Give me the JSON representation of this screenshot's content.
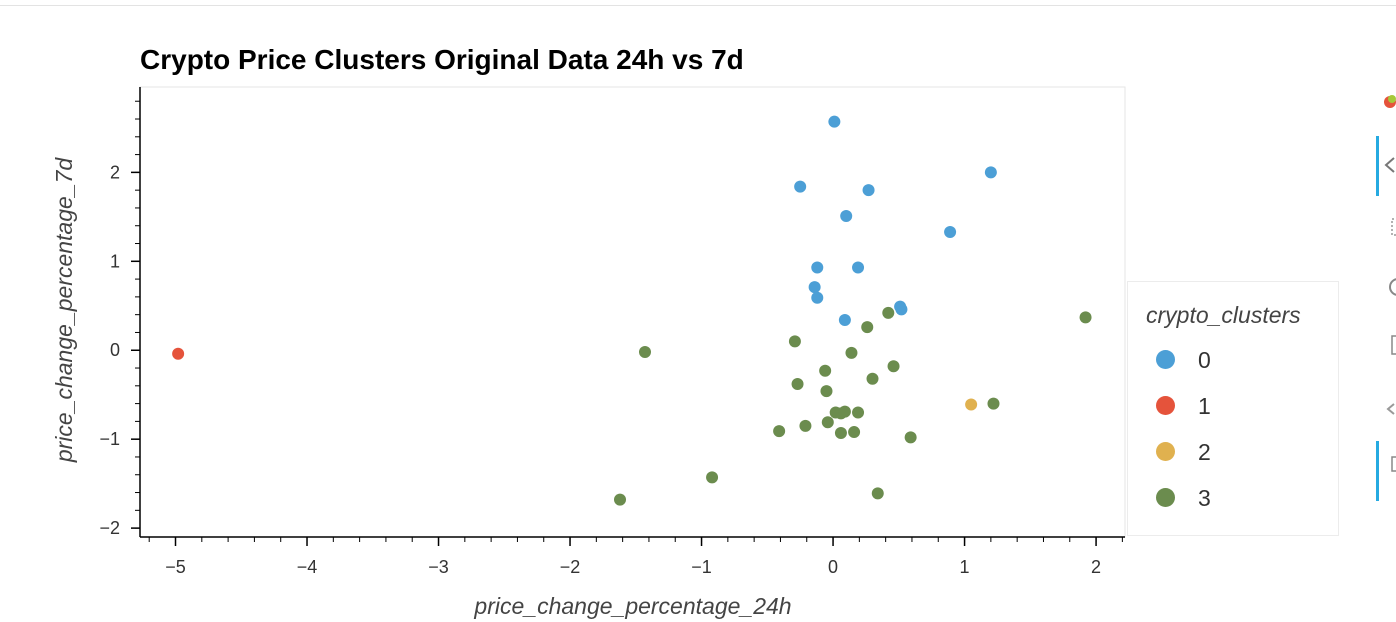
{
  "chart_data": {
    "type": "scatter",
    "title": "Crypto Price Clusters Original Data 24h vs 7d",
    "xlabel": "price_change_percentage_24h",
    "ylabel": "price_change_percentage_7d",
    "xlim": [
      -5.27,
      2.22
    ],
    "ylim": [
      -2.1,
      2.96
    ],
    "xticks": [
      -5,
      -4,
      -3,
      -2,
      -1,
      0,
      1,
      2
    ],
    "yticks": [
      -2,
      -1,
      0,
      1,
      2
    ],
    "xtick_labels": [
      "−5",
      "−4",
      "−3",
      "−2",
      "−1",
      "0",
      "1",
      "2"
    ],
    "ytick_labels": [
      "−2",
      "−1",
      "0",
      "1",
      "2"
    ],
    "legend_title": "crypto_clusters",
    "legend_position": "right",
    "grid": false,
    "series": [
      {
        "name": "0",
        "color": "#4c9fd6",
        "points": [
          [
            0.01,
            2.57
          ],
          [
            1.2,
            2.0
          ],
          [
            -0.25,
            1.84
          ],
          [
            0.27,
            1.8
          ],
          [
            0.1,
            1.51
          ],
          [
            0.89,
            1.33
          ],
          [
            -0.12,
            0.93
          ],
          [
            0.19,
            0.93
          ],
          [
            -0.14,
            0.71
          ],
          [
            -0.12,
            0.59
          ],
          [
            0.51,
            0.49
          ],
          [
            0.52,
            0.46
          ],
          [
            0.09,
            0.34
          ]
        ]
      },
      {
        "name": "1",
        "color": "#e5533b",
        "points": [
          [
            -4.98,
            -0.04
          ]
        ]
      },
      {
        "name": "2",
        "color": "#e0b14f",
        "points": [
          [
            1.05,
            -0.61
          ]
        ]
      },
      {
        "name": "3",
        "color": "#6b8c4e",
        "points": [
          [
            1.92,
            0.37
          ],
          [
            0.42,
            0.42
          ],
          [
            0.26,
            0.26
          ],
          [
            -0.29,
            0.1
          ],
          [
            -1.43,
            -0.02
          ],
          [
            0.14,
            -0.03
          ],
          [
            0.46,
            -0.18
          ],
          [
            -0.06,
            -0.23
          ],
          [
            0.3,
            -0.32
          ],
          [
            -0.27,
            -0.38
          ],
          [
            -0.05,
            -0.46
          ],
          [
            1.22,
            -0.6
          ],
          [
            0.02,
            -0.7
          ],
          [
            0.06,
            -0.71
          ],
          [
            0.09,
            -0.69
          ],
          [
            0.19,
            -0.7
          ],
          [
            -0.04,
            -0.81
          ],
          [
            -0.21,
            -0.85
          ],
          [
            -0.41,
            -0.91
          ],
          [
            0.06,
            -0.93
          ],
          [
            0.16,
            -0.92
          ],
          [
            0.59,
            -0.98
          ],
          [
            -0.92,
            -1.43
          ],
          [
            0.34,
            -1.61
          ],
          [
            -1.62,
            -1.68
          ]
        ]
      }
    ]
  }
}
